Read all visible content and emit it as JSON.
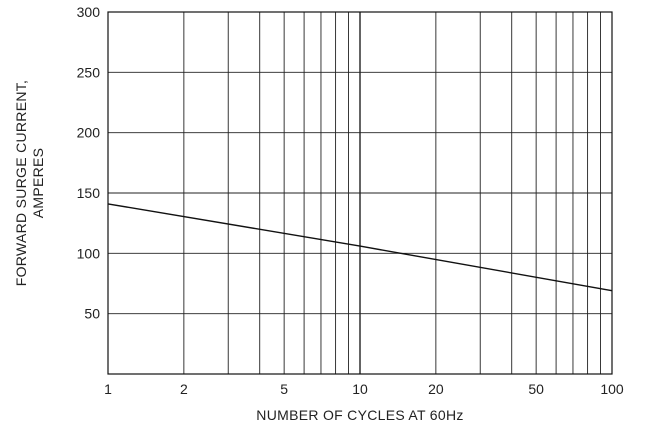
{
  "chart_data": {
    "type": "line",
    "title": "",
    "xlabel": "NUMBER OF CYCLES AT 60Hz",
    "ylabel": [
      "FORWARD SURGE CURRENT,",
      "AMPERES"
    ],
    "x_scale": "log",
    "xlim": [
      1,
      100
    ],
    "ylim": [
      0,
      300
    ],
    "x_ticks": [
      1,
      2,
      5,
      10,
      20,
      50,
      100
    ],
    "x_tick_labels": [
      "1",
      "2",
      "5",
      "10",
      "20",
      "50",
      "100"
    ],
    "y_ticks": [
      50,
      100,
      150,
      200,
      250,
      300
    ],
    "y_tick_labels": [
      "50",
      "100",
      "150",
      "200",
      "250",
      "300"
    ],
    "grid": true,
    "series": [
      {
        "x": [
          1,
          10,
          100
        ],
        "y": [
          141,
          106,
          69
        ]
      }
    ]
  },
  "colors": {
    "line": "#111111",
    "grid": "#222222",
    "axis": "#111111"
  }
}
